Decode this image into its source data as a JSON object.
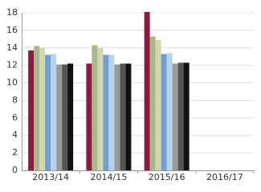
{
  "chart_data": {
    "type": "bar",
    "categories": [
      "2013/14",
      "2014/15",
      "2015/16",
      "2016/17"
    ],
    "series": [
      {
        "color": "#8b1a3c",
        "values": [
          13.7,
          12.2,
          18.1,
          null
        ]
      },
      {
        "color": "#a9b88a",
        "values": [
          14.2,
          14.3,
          15.3,
          null
        ]
      },
      {
        "color": "#d3d6b0",
        "values": [
          14.0,
          14.0,
          14.9,
          null
        ]
      },
      {
        "color": "#6f9fd0",
        "values": [
          13.2,
          13.2,
          13.3,
          null
        ]
      },
      {
        "color": "#b8d2ea",
        "values": [
          13.3,
          13.2,
          13.4,
          null
        ]
      },
      {
        "color": "#9a9a9a",
        "values": [
          12.1,
          12.1,
          12.2,
          null
        ]
      },
      {
        "color": "#555555",
        "values": [
          12.1,
          12.2,
          12.3,
          null
        ]
      },
      {
        "color": "#111111",
        "values": [
          12.2,
          12.2,
          12.3,
          null
        ]
      }
    ],
    "ylim": [
      0,
      18
    ],
    "yticks": [
      0,
      2,
      4,
      6,
      8,
      10,
      12,
      14,
      16,
      18
    ],
    "grid": true
  }
}
